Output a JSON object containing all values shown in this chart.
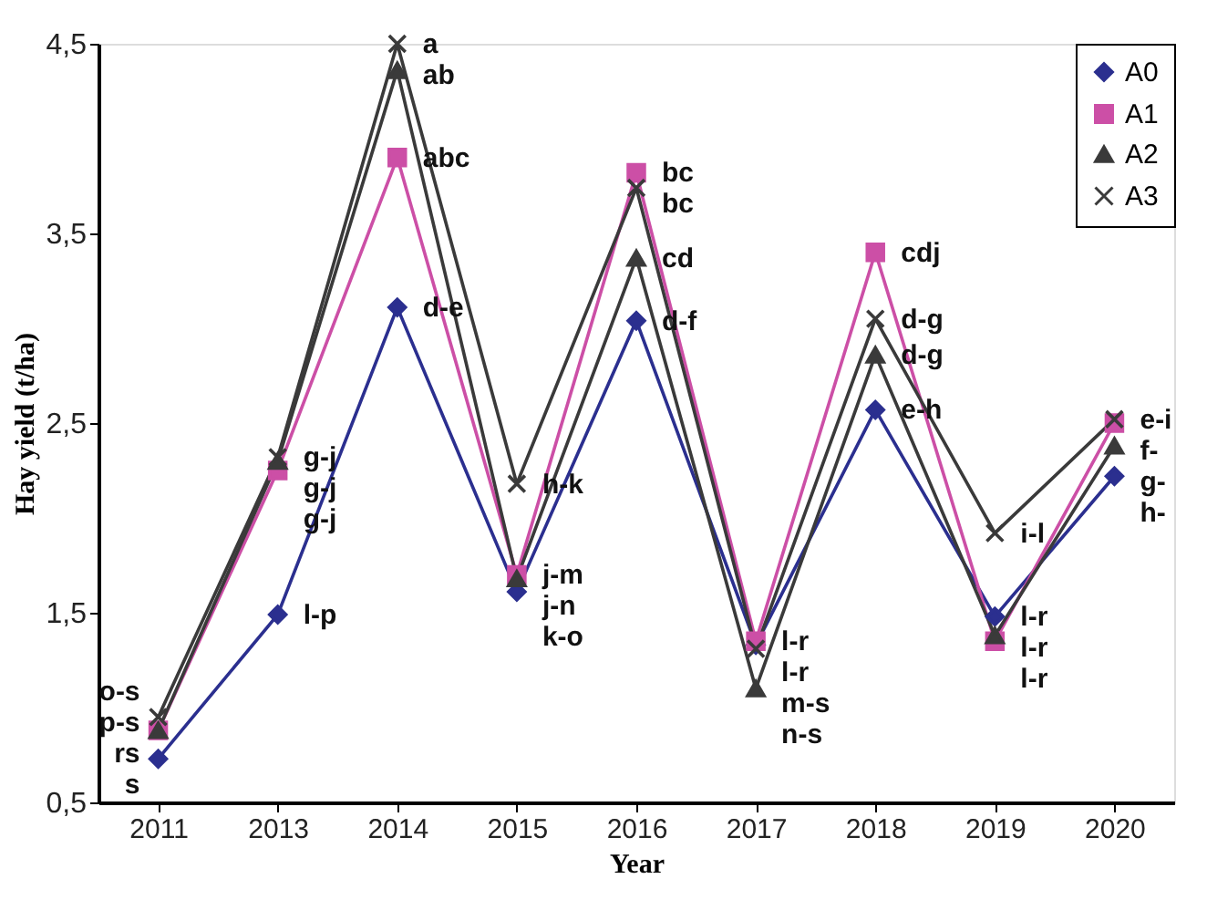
{
  "chart_data": {
    "type": "line",
    "xlabel": "Year",
    "ylabel": "Hay yield (t/ha)",
    "categories": [
      "2011",
      "2013",
      "2014",
      "2015",
      "2016",
      "2017",
      "2018",
      "2019",
      "2020"
    ],
    "series": [
      {
        "name": "A0",
        "color": "#2b2f8f",
        "marker": "diamond",
        "values": [
          0.73,
          1.49,
          3.11,
          1.61,
          3.04,
          1.33,
          2.57,
          1.48,
          2.22
        ]
      },
      {
        "name": "A1",
        "color": "#cc4fa6",
        "marker": "square",
        "values": [
          0.88,
          2.25,
          3.9,
          1.7,
          3.82,
          1.35,
          3.4,
          1.35,
          2.5
        ]
      },
      {
        "name": "A2",
        "color": "#3a3a3a",
        "marker": "triangle",
        "values": [
          0.88,
          2.3,
          4.36,
          1.68,
          3.37,
          1.1,
          2.86,
          1.38,
          2.38
        ]
      },
      {
        "name": "A3",
        "color": "#3a3a3a",
        "marker": "cross",
        "values": [
          0.95,
          2.32,
          4.5,
          2.18,
          3.74,
          1.31,
          3.05,
          1.92,
          2.52
        ]
      }
    ],
    "ylim": [
      0.5,
      4.5
    ],
    "yticks": [
      {
        "value": 0.5,
        "label": "0,5"
      },
      {
        "value": 1.5,
        "label": "1,5"
      },
      {
        "value": 2.5,
        "label": "2,5"
      },
      {
        "value": 3.5,
        "label": "3,5"
      },
      {
        "value": 4.5,
        "label": "4,5"
      }
    ],
    "grid": false,
    "legend": "top right",
    "line_style": "solid",
    "annotations": [
      {
        "text": "o-s",
        "x": "2011",
        "y": 0.95
      },
      {
        "text": "p-s",
        "x": "2011",
        "y": 0.88
      },
      {
        "text": "rs",
        "x": "2011",
        "y": 0.88
      },
      {
        "text": "s",
        "x": "2011",
        "y": 0.73
      },
      {
        "text": "g-j",
        "x": "2013",
        "y": 2.32
      },
      {
        "text": "g-j",
        "x": "2013",
        "y": 2.3
      },
      {
        "text": "g-j",
        "x": "2013",
        "y": 2.25
      },
      {
        "text": "l-p",
        "x": "2013",
        "y": 1.49
      },
      {
        "text": "a",
        "x": "2014",
        "y": 4.5
      },
      {
        "text": "ab",
        "x": "2014",
        "y": 4.36
      },
      {
        "text": "abc",
        "x": "2014",
        "y": 3.9
      },
      {
        "text": "d-e",
        "x": "2014",
        "y": 3.11
      },
      {
        "text": "h-k",
        "x": "2015",
        "y": 2.18
      },
      {
        "text": "j-m",
        "x": "2015",
        "y": 1.7
      },
      {
        "text": "j-n",
        "x": "2015",
        "y": 1.68
      },
      {
        "text": "k-o",
        "x": "2015",
        "y": 1.61
      },
      {
        "text": "bc",
        "x": "2016",
        "y": 3.82
      },
      {
        "text": "bc",
        "x": "2016",
        "y": 3.74
      },
      {
        "text": "cd",
        "x": "2016",
        "y": 3.37
      },
      {
        "text": "d-f",
        "x": "2016",
        "y": 3.04
      },
      {
        "text": "l-r",
        "x": "2017",
        "y": 1.35
      },
      {
        "text": "l-r",
        "x": "2017",
        "y": 1.33
      },
      {
        "text": "m-s",
        "x": "2017",
        "y": 1.31
      },
      {
        "text": "n-s",
        "x": "2017",
        "y": 1.1
      },
      {
        "text": "cdj",
        "x": "2018",
        "y": 3.4
      },
      {
        "text": "d-g",
        "x": "2018",
        "y": 3.05
      },
      {
        "text": "d-g",
        "x": "2018",
        "y": 2.86
      },
      {
        "text": "e-h",
        "x": "2018",
        "y": 2.57
      },
      {
        "text": "i-l",
        "x": "2019",
        "y": 1.92
      },
      {
        "text": "l-r",
        "x": "2019",
        "y": 1.48
      },
      {
        "text": "l-r",
        "x": "2019",
        "y": 1.38
      },
      {
        "text": "l-r",
        "x": "2019",
        "y": 1.35
      },
      {
        "text": "e-i",
        "x": "2020",
        "y": 2.52
      },
      {
        "text": "f-",
        "x": "2020",
        "y": 2.5
      },
      {
        "text": "g-",
        "x": "2020",
        "y": 2.38
      },
      {
        "text": "h-",
        "x": "2020",
        "y": 2.22
      }
    ]
  }
}
